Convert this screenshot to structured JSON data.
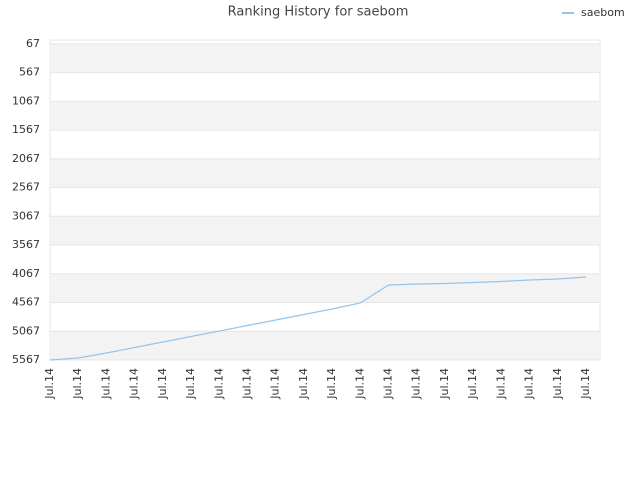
{
  "chart_data": {
    "type": "line",
    "title": "Ranking History for saebom",
    "categories": [
      "Jul.14",
      "Jul.14",
      "Jul.14",
      "Jul.14",
      "Jul.14",
      "Jul.14",
      "Jul.14",
      "Jul.14",
      "Jul.14",
      "Jul.14",
      "Jul.14",
      "Jul.14",
      "Jul.14",
      "Jul.14",
      "Jul.14",
      "Jul.14",
      "Jul.14",
      "Jul.14",
      "Jul.14",
      "Jul.14"
    ],
    "series": [
      {
        "name": "saebom",
        "color": "#95c4ec",
        "values": [
          5567,
          5532,
          5445,
          5350,
          5254,
          5158,
          5063,
          4967,
          4871,
          4775,
          4680,
          4575,
          4262,
          4245,
          4236,
          4219,
          4201,
          4175,
          4158,
          4123
        ]
      }
    ],
    "ylim": [
      5567,
      0
    ],
    "yticks": [
      67,
      567,
      1067,
      1567,
      2067,
      2567,
      3067,
      3567,
      4067,
      4567,
      5067,
      5567
    ],
    "grid": true,
    "legend": "top-right"
  }
}
